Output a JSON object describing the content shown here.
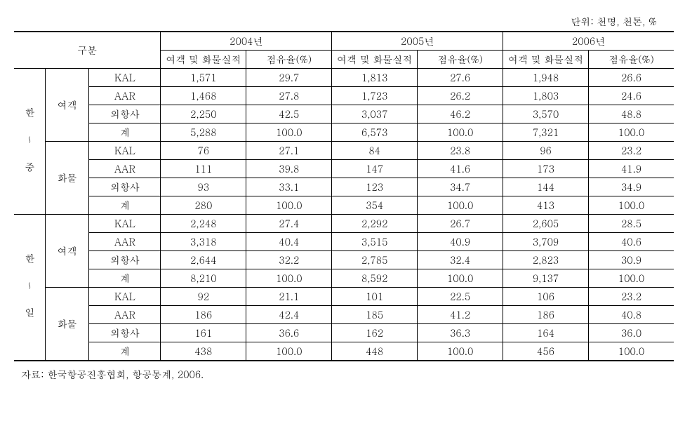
{
  "unit_label": "단위: 천명, 천톤, %",
  "header": {
    "category": "구분",
    "years": [
      "2004년",
      "2005년",
      "2006년"
    ],
    "sub_cols": [
      "여객 및 화물실적",
      "점유율(%)"
    ]
  },
  "routes": [
    {
      "name": "한 ∼ 중",
      "types": [
        {
          "name": "여객",
          "rows": [
            {
              "carrier": "KAL",
              "y2004_val": "1,571",
              "y2004_pct": "29.7",
              "y2005_val": "1,813",
              "y2005_pct": "27.6",
              "y2006_val": "1,948",
              "y2006_pct": "26.6"
            },
            {
              "carrier": "AAR",
              "y2004_val": "1,468",
              "y2004_pct": "27.8",
              "y2005_val": "1,723",
              "y2005_pct": "26.2",
              "y2006_val": "1,803",
              "y2006_pct": "24.6"
            },
            {
              "carrier": "외항사",
              "y2004_val": "2,250",
              "y2004_pct": "42.5",
              "y2005_val": "3,037",
              "y2005_pct": "46.2",
              "y2006_val": "3,570",
              "y2006_pct": "48.8"
            },
            {
              "carrier": "계",
              "y2004_val": "5,288",
              "y2004_pct": "100.0",
              "y2005_val": "6,573",
              "y2005_pct": "100.0",
              "y2006_val": "7,321",
              "y2006_pct": "100.0"
            }
          ]
        },
        {
          "name": "화물",
          "rows": [
            {
              "carrier": "KAL",
              "y2004_val": "76",
              "y2004_pct": "27.1",
              "y2005_val": "84",
              "y2005_pct": "23.8",
              "y2006_val": "96",
              "y2006_pct": "23.2"
            },
            {
              "carrier": "AAR",
              "y2004_val": "111",
              "y2004_pct": "39.8",
              "y2005_val": "147",
              "y2005_pct": "41.6",
              "y2006_val": "173",
              "y2006_pct": "41.9"
            },
            {
              "carrier": "외항사",
              "y2004_val": "93",
              "y2004_pct": "33.1",
              "y2005_val": "123",
              "y2005_pct": "34.7",
              "y2006_val": "144",
              "y2006_pct": "34.9"
            },
            {
              "carrier": "계",
              "y2004_val": "280",
              "y2004_pct": "100.0",
              "y2005_val": "354",
              "y2005_pct": "100.0",
              "y2006_val": "413",
              "y2006_pct": "100.0"
            }
          ]
        }
      ]
    },
    {
      "name": "한 ∼ 일",
      "types": [
        {
          "name": "여객",
          "rows": [
            {
              "carrier": "KAL",
              "y2004_val": "2,248",
              "y2004_pct": "27.4",
              "y2005_val": "2,292",
              "y2005_pct": "26.7",
              "y2006_val": "2,605",
              "y2006_pct": "28.5"
            },
            {
              "carrier": "AAR",
              "y2004_val": "3,318",
              "y2004_pct": "40.4",
              "y2005_val": "3,515",
              "y2005_pct": "40.9",
              "y2006_val": "3,709",
              "y2006_pct": "40.6"
            },
            {
              "carrier": "외항사",
              "y2004_val": "2,644",
              "y2004_pct": "32.2",
              "y2005_val": "2,785",
              "y2005_pct": "32.4",
              "y2006_val": "2,823",
              "y2006_pct": "30.9"
            },
            {
              "carrier": "계",
              "y2004_val": "8,210",
              "y2004_pct": "100.0",
              "y2005_val": "8,592",
              "y2005_pct": "100.0",
              "y2006_val": "9,137",
              "y2006_pct": "100.0"
            }
          ]
        },
        {
          "name": "화물",
          "rows": [
            {
              "carrier": "KAL",
              "y2004_val": "92",
              "y2004_pct": "21.1",
              "y2005_val": "101",
              "y2005_pct": "22.5",
              "y2006_val": "106",
              "y2006_pct": "23.2"
            },
            {
              "carrier": "AAR",
              "y2004_val": "186",
              "y2004_pct": "42.4",
              "y2005_val": "185",
              "y2005_pct": "41.2",
              "y2006_val": "186",
              "y2006_pct": "40.8"
            },
            {
              "carrier": "외항사",
              "y2004_val": "161",
              "y2004_pct": "36.6",
              "y2005_val": "162",
              "y2005_pct": "36.3",
              "y2006_val": "164",
              "y2006_pct": "36.0"
            },
            {
              "carrier": "계",
              "y2004_val": "438",
              "y2004_pct": "100.0",
              "y2005_val": "448",
              "y2005_pct": "100.0",
              "y2006_val": "456",
              "y2006_pct": "100.0"
            }
          ]
        }
      ]
    }
  ],
  "source": "자료: 한국항공진흥협회, 항공통계, 2006."
}
